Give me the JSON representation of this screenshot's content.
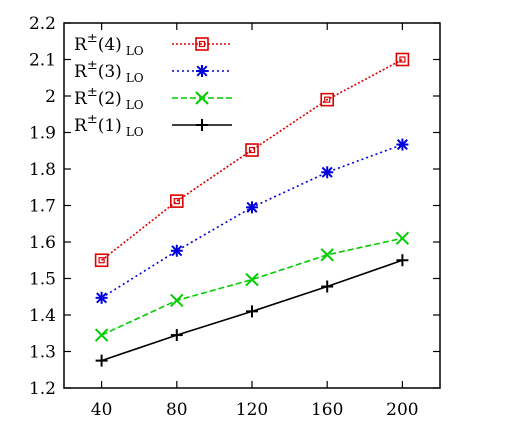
{
  "chart_data": {
    "type": "line",
    "title": "",
    "xlabel": "",
    "ylabel": "",
    "x": [
      40,
      80,
      120,
      160,
      200
    ],
    "xlim": [
      20,
      220
    ],
    "ylim": [
      1.2,
      2.2
    ],
    "x_ticks": [
      "40",
      "80",
      "120",
      "160",
      "200"
    ],
    "y_ticks": [
      "1.2",
      "1.3",
      "1.4",
      "1.5",
      "1.6",
      "1.7",
      "1.8",
      "1.9",
      "2",
      "2.1",
      "2.2"
    ],
    "grid": false,
    "legend_position": "top-left",
    "series": [
      {
        "name": "R±(4) LO",
        "base": "R",
        "sup": "±",
        "arg": "(4)",
        "sub": "LO",
        "color": "#dd0000",
        "marker": "box",
        "dash": "2,2",
        "values": [
          1.55,
          1.712,
          1.852,
          1.99,
          2.1
        ]
      },
      {
        "name": "R±(3) LO",
        "base": "R",
        "sup": "±",
        "arg": "(3)",
        "sub": "LO",
        "color": "#0000dd",
        "marker": "star",
        "dash": "2,3",
        "values": [
          1.447,
          1.576,
          1.695,
          1.791,
          1.867
        ]
      },
      {
        "name": "R±(2) LO",
        "base": "R",
        "sup": "±",
        "arg": "(2)",
        "sub": "LO",
        "color": "#00cc00",
        "marker": "cross",
        "dash": "6,3",
        "values": [
          1.345,
          1.44,
          1.497,
          1.565,
          1.61
        ]
      },
      {
        "name": "R±(1) LO",
        "base": "R",
        "sup": "±",
        "arg": "(1)",
        "sub": "LO",
        "color": "#000000",
        "marker": "plus",
        "dash": "",
        "values": [
          1.275,
          1.345,
          1.41,
          1.478,
          1.55
        ]
      }
    ]
  }
}
